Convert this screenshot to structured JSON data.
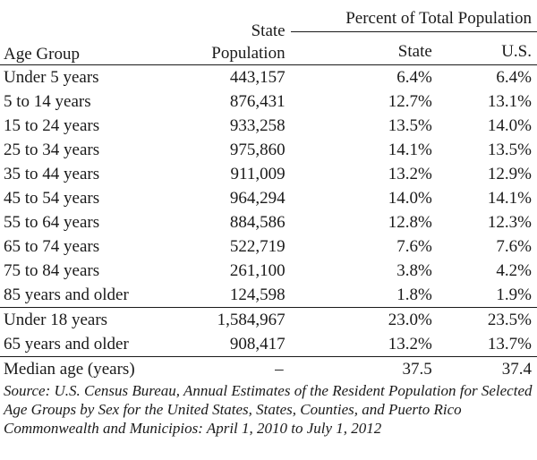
{
  "header": {
    "age_group": "Age Group",
    "state_population_line1": "State",
    "state_population_line2": "Population",
    "percent_total": "Percent of Total Population",
    "state": "State",
    "us": "U.S."
  },
  "rows_group1": [
    {
      "age": "Under 5 years",
      "pop": "443,157",
      "state": "6.4%",
      "us": "6.4%"
    },
    {
      "age": "5 to 14 years",
      "pop": "876,431",
      "state": "12.7%",
      "us": "13.1%"
    },
    {
      "age": "15 to 24 years",
      "pop": "933,258",
      "state": "13.5%",
      "us": "14.0%"
    },
    {
      "age": "25 to 34 years",
      "pop": "975,860",
      "state": "14.1%",
      "us": "13.5%"
    },
    {
      "age": "35 to 44 years",
      "pop": "911,009",
      "state": "13.2%",
      "us": "12.9%"
    },
    {
      "age": "45 to 54 years",
      "pop": "964,294",
      "state": "14.0%",
      "us": "14.1%"
    },
    {
      "age": "55 to 64 years",
      "pop": "884,586",
      "state": "12.8%",
      "us": "12.3%"
    },
    {
      "age": "65 to 74 years",
      "pop": "522,719",
      "state": "7.6%",
      "us": "7.6%"
    },
    {
      "age": "75 to 84 years",
      "pop": "261,100",
      "state": "3.8%",
      "us": "4.2%"
    },
    {
      "age": "85 years and older",
      "pop": "124,598",
      "state": "1.8%",
      "us": "1.9%"
    }
  ],
  "rows_group2": [
    {
      "age": "Under 18 years",
      "pop": "1,584,967",
      "state": "23.0%",
      "us": "23.5%"
    },
    {
      "age": "65 years and older",
      "pop": "908,417",
      "state": "13.2%",
      "us": "13.7%"
    }
  ],
  "rows_group3": [
    {
      "age": "Median age (years)",
      "pop": "–",
      "state": "37.5",
      "us": "37.4"
    }
  ],
  "source": "Source: U.S. Census Bureau, Annual Estimates of the Resident Population for Selected Age Groups by Sex for the United States, States, Counties, and Puerto Rico Commonwealth and Municipios: April 1, 2010 to July 1, 2012"
}
